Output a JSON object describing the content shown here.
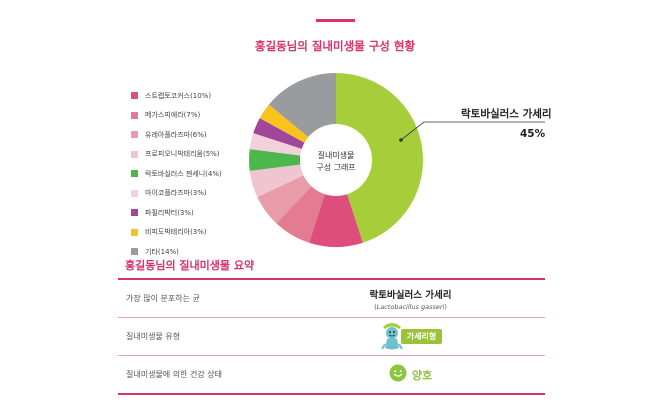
{
  "title": "홍길동님의 질내미생물 구성 현황",
  "chart_data": {
    "type": "pie",
    "center_label": [
      "질내미생물",
      "구성 그래프"
    ],
    "slices": [
      {
        "name": "락토바실러스 가세리",
        "value": 45,
        "color": "#a6cd3a"
      },
      {
        "name": "스트렙토코커스",
        "value": 10,
        "color": "#dd4e7a"
      },
      {
        "name": "메가스피에라",
        "value": 7,
        "color": "#e37b92"
      },
      {
        "name": "유레아플라즈마",
        "value": 6,
        "color": "#e89ba9"
      },
      {
        "name": "프로피오니박테리움",
        "value": 5,
        "color": "#f1c5cf"
      },
      {
        "name": "락토바실러스 젠세니",
        "value": 4,
        "color": "#4cb74c"
      },
      {
        "name": "마이코플라즈마",
        "value": 3,
        "color": "#f3d1da"
      },
      {
        "name": "파필리박터",
        "value": 3,
        "color": "#a0479c"
      },
      {
        "name": "비피도박테리아",
        "value": 3,
        "color": "#f9c21d"
      },
      {
        "name": "기타",
        "value": 14,
        "color": "#9a9b9e"
      }
    ],
    "legend": {
      "placement": "left",
      "items": [
        {
          "label": "스트렙토코커스(10%)",
          "color": "#dd4e7a"
        },
        {
          "label": "메가스피에라(7%)",
          "color": "#e37b92"
        },
        {
          "label": "유레아플라즈마(6%)",
          "color": "#e89ba9"
        },
        {
          "label": "프로피오니박테리움(5%)",
          "color": "#f1c5cf"
        },
        {
          "label": "락토바실러스 젠세니(4%)",
          "color": "#4cb74c"
        },
        {
          "label": "마이코플라즈마(3%)",
          "color": "#f3d1da"
        },
        {
          "label": "파필리박터(3%)",
          "color": "#a0479c"
        },
        {
          "label": "비피도박테리아(3%)",
          "color": "#f9c21d"
        },
        {
          "label": "기타(14%)",
          "color": "#9a9b9e"
        }
      ]
    },
    "callout": {
      "name": "락토바실러스 가세리",
      "percent": "45%"
    }
  },
  "summary": {
    "title": "홍길동님의 질내미생물 요약",
    "rows": {
      "dominant": {
        "label": "가장 많이 분포하는 균",
        "value": "락토바실러스 가세리",
        "scientific_open": "(",
        "scientific": "Lactobacillus gasseri",
        "scientific_close": ")"
      },
      "type": {
        "label": "질내미생물 유형",
        "value": "가세리형",
        "icon": "gasseri-character-icon"
      },
      "health": {
        "label": "질내미생물에 의한 건강 상태",
        "value": "양호",
        "icon": "smiley-icon"
      }
    }
  },
  "colors": {
    "accent": "#d9336a",
    "accent_light": "#e9a3b9",
    "good_green": "#8cc63f",
    "badge_green": "#9ac336"
  }
}
